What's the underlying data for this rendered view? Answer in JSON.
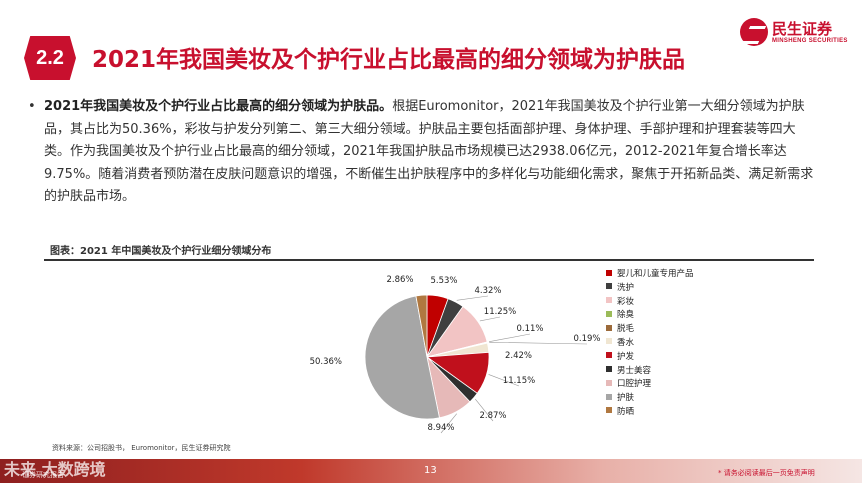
{
  "header": {
    "section_number": "2.2",
    "title": "2021年我国美妆及个护行业占比最高的细分领域为护肤品",
    "logo_cn": "民生证券",
    "logo_en": "MINSHENG SECURITIES"
  },
  "body": {
    "bullet": "•",
    "lead": "2021年我国美妆及个护行业占比最高的细分领域为护肤品。",
    "text": "根据Euromonitor，2021年我国美妆及个护行业第一大细分领域为护肤品，其占比为50.36%，彩妆与护发分列第二、第三大细分领域。护肤品主要包括面部护理、身体护理、手部护理和护理套装等四大类。作为我国美妆及个护行业占比最高的细分领域，2021年我国护肤品市场规模已达2938.06亿元，2012-2021年复合增长率达9.75%。随着消费者预防潜在皮肤问题意识的增强，不断催生出护肤程序中的多样化与功能细化需求，聚焦于开拓新品类、满足新需求的护肤品市场。"
  },
  "chart_title": "图表：2021 年中国美妆及个护行业细分领域分布",
  "chart_data": {
    "type": "pie",
    "title": "图表：2021 年中国美妆及个护行业细分领域分布",
    "legend_position": "right",
    "categories": [
      "婴儿和儿童专用产品",
      "洗护",
      "彩妆",
      "除臭",
      "脱毛",
      "香水",
      "护发",
      "男士美容",
      "口腔护理",
      "护肤",
      "防晒"
    ],
    "values": [
      5.53,
      4.32,
      11.25,
      0.11,
      0.19,
      2.42,
      11.15,
      2.87,
      8.94,
      50.36,
      2.86
    ],
    "labels": [
      "5.53%",
      "4.32%",
      "11.25%",
      "0.11%",
      "0.19%",
      "2.42%",
      "11.15%",
      "2.87%",
      "8.94%",
      "50.36%",
      "2.86%"
    ],
    "colors": [
      "#c00000",
      "#3f3f3f",
      "#f2c4c4",
      "#9bbb59",
      "#9c6a3a",
      "#f0e6d2",
      "#c0101c",
      "#2f2f2f",
      "#e6b9b8",
      "#a6a6a6",
      "#b07840"
    ]
  },
  "source": "资料来源：公司招股书， Euromonitor，民生证券研究院",
  "footer": {
    "page_number": "13",
    "disclaimer": "* 请务必阅读最后一页免责声明",
    "watermark": "未来 大数跨境",
    "watermark_sub": "证券研究报告"
  }
}
